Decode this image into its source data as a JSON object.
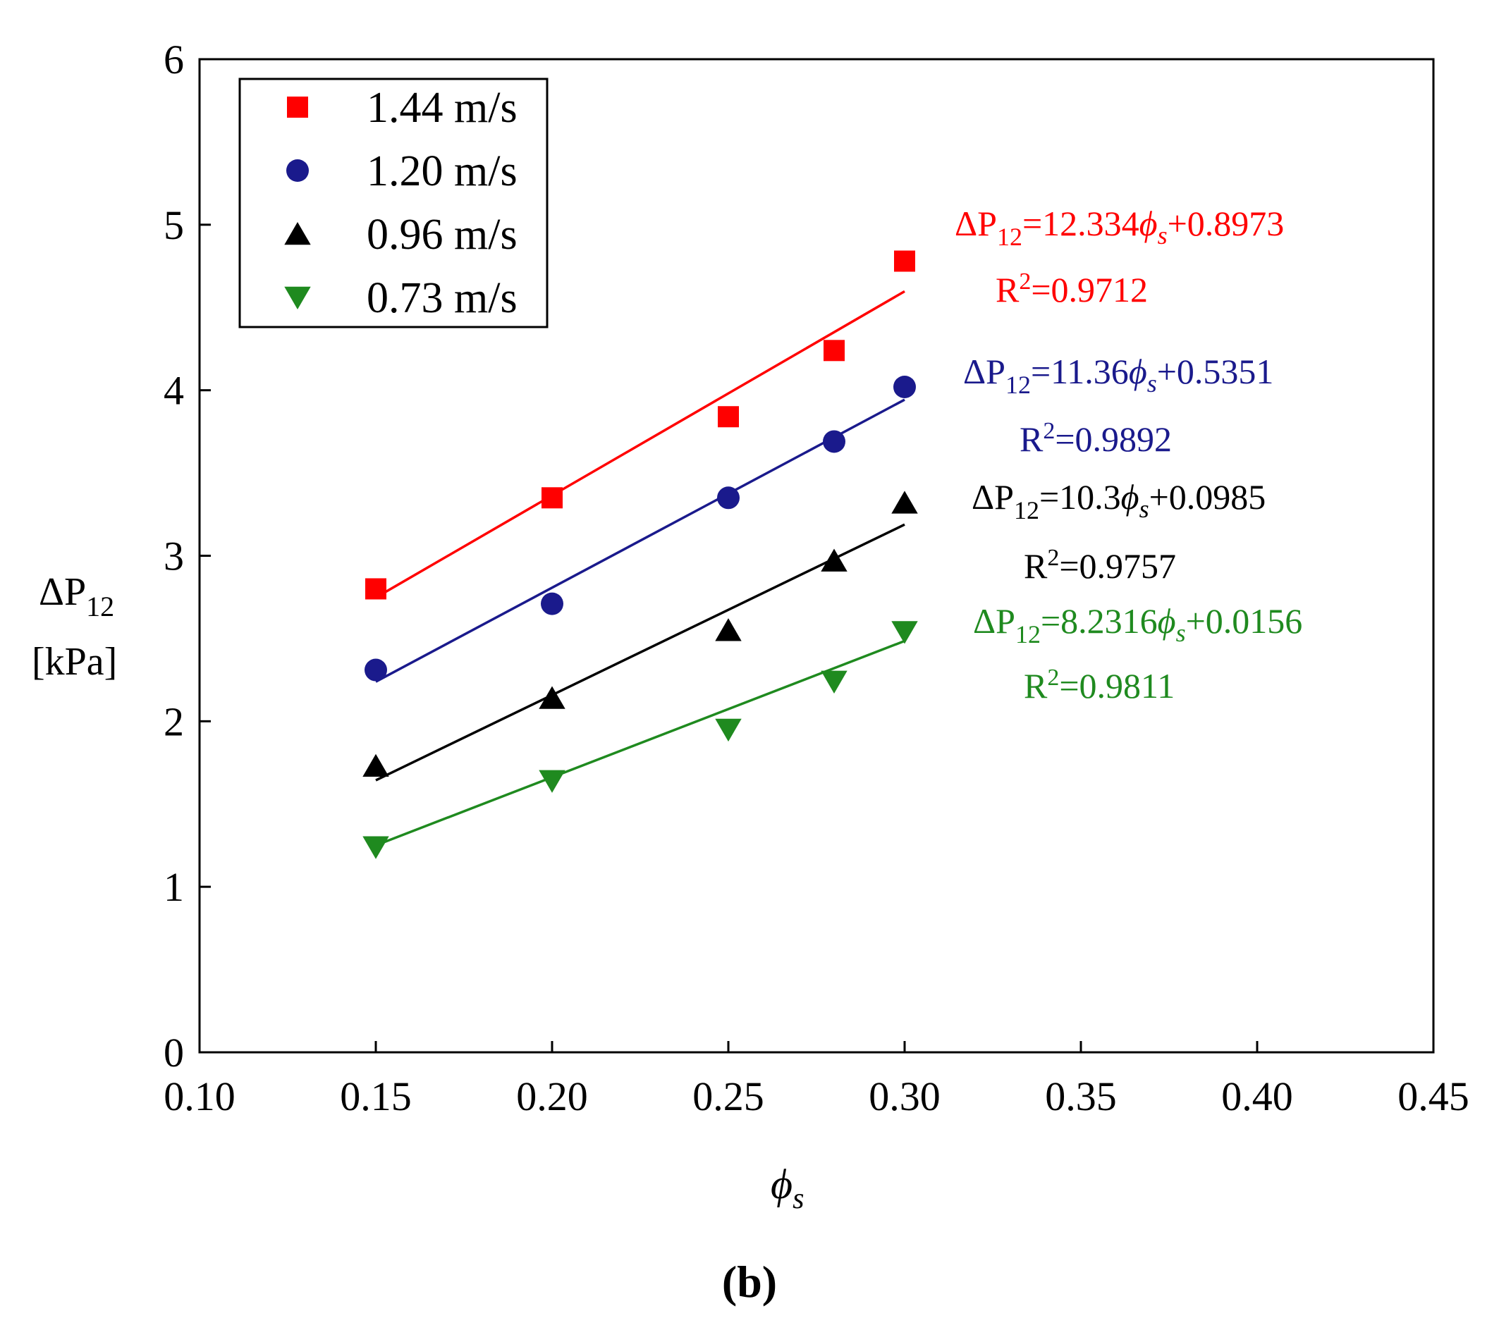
{
  "chart_data": {
    "type": "scatter",
    "xlim": [
      0.1,
      0.45
    ],
    "ylim": [
      0,
      6
    ],
    "xticks": [
      "0.10",
      "0.15",
      "0.20",
      "0.25",
      "0.30",
      "0.35",
      "0.40",
      "0.45"
    ],
    "yticks": [
      "0",
      "1",
      "2",
      "3",
      "4",
      "5",
      "6"
    ],
    "xlabel": "ϕs",
    "xlabel_main": "ϕ",
    "xlabel_sub": "s",
    "ylabel_line1": "ΔP",
    "ylabel_line1_sub": "12",
    "ylabel_line2": "[kPa]",
    "panel_label": "(b)",
    "grid": false,
    "legend_position": "top-left",
    "series": [
      {
        "name": "1.44 m/s",
        "color": "#ff0000",
        "marker": "square",
        "x": [
          0.15,
          0.2,
          0.25,
          0.28,
          0.3
        ],
        "y": [
          2.8,
          3.35,
          3.84,
          4.24,
          4.78
        ],
        "fit": {
          "slope": 12.334,
          "intercept": 0.8973,
          "x_range": [
            0.15,
            0.3
          ]
        },
        "equation": {
          "lhs": "ΔP",
          "lhs_sub": "12",
          "mid": "=12.334",
          "var": "ϕ",
          "var_sub": "s",
          "tail": "+0.8973"
        },
        "r2": {
          "r": "R",
          "sup": "2",
          "value": "=0.9712"
        }
      },
      {
        "name": "1.20 m/s",
        "color": "#1a1a8c",
        "marker": "circle",
        "x": [
          0.15,
          0.2,
          0.25,
          0.28,
          0.3
        ],
        "y": [
          2.31,
          2.71,
          3.35,
          3.69,
          4.02
        ],
        "fit": {
          "slope": 11.36,
          "intercept": 0.5351,
          "x_range": [
            0.15,
            0.3
          ]
        },
        "equation": {
          "lhs": "ΔP",
          "lhs_sub": "12",
          "mid": "=11.36",
          "var": "ϕ",
          "var_sub": "s",
          "tail": "+0.5351"
        },
        "r2": {
          "r": "R",
          "sup": "2",
          "value": "=0.9892"
        }
      },
      {
        "name": "0.96 m/s",
        "color": "#000000",
        "marker": "triangle-up",
        "x": [
          0.15,
          0.2,
          0.25,
          0.28,
          0.3
        ],
        "y": [
          1.73,
          2.14,
          2.55,
          2.97,
          3.32
        ],
        "fit": {
          "slope": 10.3,
          "intercept": 0.0985,
          "x_range": [
            0.15,
            0.3
          ]
        },
        "equation": {
          "lhs": "ΔP",
          "lhs_sub": "12",
          "mid": "=10.3",
          "var": "ϕ",
          "var_sub": "s",
          "tail": "+0.0985"
        },
        "r2": {
          "r": "R",
          "sup": "2",
          "value": "=0.9757"
        }
      },
      {
        "name": "0.73 m/s",
        "color": "#1f8a1f",
        "marker": "triangle-down",
        "x": [
          0.15,
          0.2,
          0.25,
          0.28,
          0.3
        ],
        "y": [
          1.24,
          1.64,
          1.95,
          2.24,
          2.54
        ],
        "fit": {
          "slope": 8.2316,
          "intercept": 0.0156,
          "x_range": [
            0.15,
            0.3
          ]
        },
        "equation": {
          "lhs": "ΔP",
          "lhs_sub": "12",
          "mid": "=8.2316",
          "var": "ϕ",
          "var_sub": "s",
          "tail": "+0.0156"
        },
        "r2": {
          "r": "R",
          "sup": "2",
          "value": "=0.9811"
        }
      }
    ]
  }
}
